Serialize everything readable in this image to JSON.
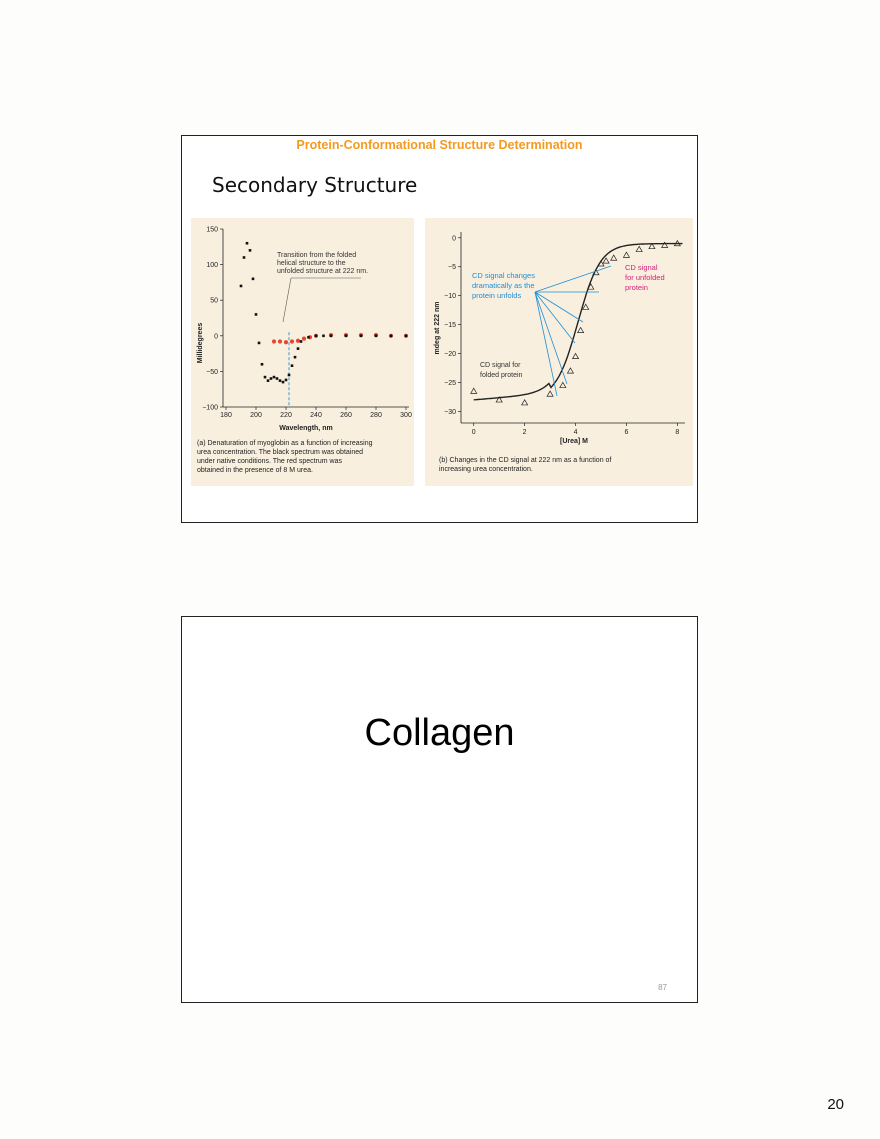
{
  "slide1": {
    "header": "Protein-Conformational Structure Determination",
    "subtitle": "Secondary Structure",
    "figure_a": {
      "ylabel": "Millidegrees",
      "xlabel": "Wavelength, nm",
      "yticks": [
        "150",
        "100",
        "50",
        "0",
        "−50",
        "−100"
      ],
      "xticks": [
        "180",
        "200",
        "220",
        "240",
        "260",
        "280",
        "300"
      ],
      "annotation": [
        "Transition from the folded",
        "helical structure to the",
        "unfolded structure at 222 nm."
      ],
      "caption": [
        "(a) Denaturation of myoglobin as a function of increasing",
        "urea concentration. The black spectrum was obtained",
        "under native conditions. The red spectrum was",
        "obtained in the presence of 8 M urea."
      ]
    },
    "figure_b": {
      "ylabel": "mdeg at 222 nm",
      "xlabel": "[Urea] M",
      "yticks": [
        "0",
        "−5",
        "−10",
        "−15",
        "−20",
        "−25",
        "−30"
      ],
      "xticks": [
        "0",
        "2",
        "4",
        "6",
        "8"
      ],
      "blue_annotation": [
        "CD signal changes",
        "dramatically as the",
        "protein unfolds"
      ],
      "pink_annotation": [
        "CD signal",
        "for unfolded",
        "protein"
      ],
      "folded_annotation": [
        "CD signal for",
        "folded protein"
      ],
      "caption": [
        "(b) Changes in the CD signal at 222 nm as a function of",
        "increasing urea concentration."
      ]
    }
  },
  "slide2": {
    "title": "Collagen",
    "slide_number": "87"
  },
  "page_number": "20",
  "colors": {
    "header": "#f39a1f",
    "blue_annotation": "#1f8fd6",
    "pink_annotation": "#d1237a",
    "red_spectrum": "#e8452c",
    "panel_bg": "#f8efdf"
  },
  "chart_data": [
    {
      "type": "scatter",
      "xlabel": "Wavelength, nm",
      "ylabel": "Millidegrees",
      "xlim": [
        178,
        302
      ],
      "ylim": [
        -100,
        150
      ],
      "series": [
        {
          "color": "black",
          "x": [
            190,
            192,
            194,
            196,
            198,
            200,
            202,
            204,
            206,
            208,
            210,
            212,
            214,
            216,
            218,
            220,
            222,
            224,
            226,
            228,
            230,
            235,
            240,
            245,
            250,
            260,
            270,
            280,
            290,
            300
          ],
          "values": [
            70,
            110,
            130,
            120,
            80,
            30,
            -10,
            -40,
            -58,
            -63,
            -60,
            -58,
            -60,
            -63,
            -65,
            -62,
            -55,
            -42,
            -30,
            -18,
            -8,
            -2,
            0,
            0,
            0,
            0,
            0,
            0,
            0,
            0
          ]
        },
        {
          "color": "red",
          "x": [
            212,
            216,
            220,
            224,
            228,
            232,
            236,
            240,
            250,
            260,
            270,
            280,
            290,
            300
          ],
          "values": [
            -8,
            -8,
            -9,
            -8,
            -7,
            -4,
            -2,
            0,
            1,
            1,
            1,
            1,
            0,
            0
          ]
        }
      ]
    },
    {
      "type": "scatter",
      "xlabel": "[Urea] M",
      "ylabel": "mdeg at 222 nm",
      "xlim": [
        -0.5,
        8.3
      ],
      "ylim": [
        -32,
        1
      ],
      "series": [
        {
          "marker": "triangle",
          "x": [
            0,
            1,
            2,
            3,
            3.5,
            3.8,
            4,
            4.2,
            4.4,
            4.6,
            4.8,
            5,
            5.2,
            5.5,
            6,
            6.5,
            7,
            7.5,
            8
          ],
          "values": [
            -26.5,
            -28,
            -28.5,
            -27,
            -25.5,
            -23,
            -20.5,
            -16,
            -12,
            -8.5,
            -6,
            -4.5,
            -4,
            -3.5,
            -3,
            -2,
            -1.5,
            -1.3,
            -1
          ]
        }
      ]
    }
  ]
}
